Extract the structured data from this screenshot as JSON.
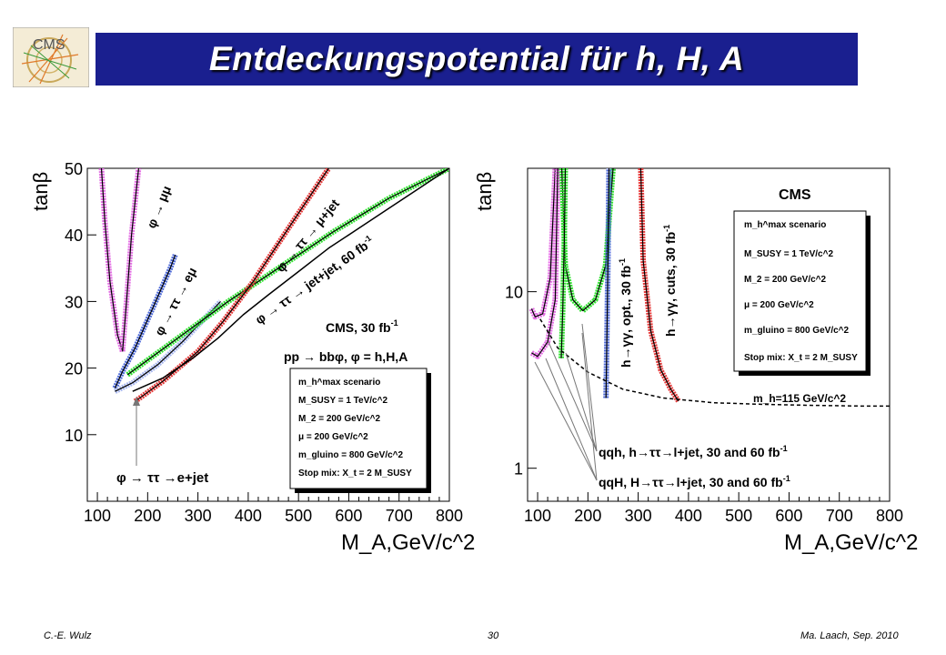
{
  "slide": {
    "title": "Entdeckungspotential für h, H, A",
    "logo_text": "CMS",
    "footer_left": "C.-E. Wulz",
    "footer_center": "30",
    "footer_right": "Ma. Laach, Sep. 2010"
  },
  "colors": {
    "title_bg": "#1a1f8f",
    "magenta": "#e36fe3",
    "blue": "#4f6bd8",
    "lightblue": "#a9b8ef",
    "green": "#33e033",
    "red": "#e33b3b"
  },
  "chart_data": [
    {
      "type": "line",
      "xlabel": "M_A,GeV/c^2",
      "ylabel": "tanβ",
      "xlim": [
        80,
        800
      ],
      "ylim": [
        0,
        50
      ],
      "xticks": [
        100,
        200,
        300,
        400,
        500,
        600,
        700,
        800
      ],
      "yticks": [
        10,
        20,
        30,
        40,
        50
      ],
      "annotations": {
        "cms": "CMS, 30 fb",
        "cms_sup": "-1",
        "process": "pp → bbφ, φ = h,H,A",
        "ch_mumu": "φ → μμ",
        "ch_emu": "φ → ττ → eμ",
        "ch_mujet": "φ → ττ → μ+jet",
        "ch_jetjet": "φ → ττ → jet+jet, 60 fb",
        "ch_jetjet_sup": "-1",
        "ch_ejet": "φ → ττ →e+jet"
      },
      "legend": {
        "l1": "m_h^max scenario",
        "l2": "M_SUSY = 1 TeV/c^2",
        "l3": "M_2 = 200 GeV/c^2",
        "l4": "μ = 200 GeV/c^2",
        "l5": "m_gluino = 800 GeV/c^2",
        "l6": "Stop mix: X_t = 2 M_SUSY"
      },
      "series": [
        {
          "color": "#e36fe3",
          "x": [
            108,
            115,
            125,
            140,
            150
          ],
          "y": [
            50,
            42,
            33,
            25,
            22.5
          ]
        },
        {
          "color": "#e36fe3",
          "x": [
            150,
            158,
            168,
            182
          ],
          "y": [
            22.5,
            30,
            40,
            50
          ]
        },
        {
          "color": "#4f6bd8",
          "x": [
            135,
            150,
            175,
            210,
            245,
            255
          ],
          "y": [
            17,
            19.5,
            23,
            29,
            35,
            37
          ]
        },
        {
          "color": "#a9b8ef",
          "x": [
            135,
            170,
            220,
            270,
            320,
            345
          ],
          "y": [
            16.5,
            17.8,
            20.5,
            24,
            28,
            30
          ]
        },
        {
          "color": "#33e033",
          "x": [
            160,
            260,
            360,
            470,
            570,
            680,
            800
          ],
          "y": [
            19,
            24.5,
            30,
            35.5,
            40.5,
            45.5,
            50
          ]
        },
        {
          "color": "#e33b3b",
          "x": [
            175,
            230,
            300,
            350,
            410,
            480,
            560
          ],
          "y": [
            15,
            18,
            22.5,
            27,
            33,
            41,
            50
          ]
        },
        {
          "color": "#000000",
          "x": [
            170,
            230,
            290,
            340,
            390,
            440,
            500,
            560,
            620,
            680,
            740,
            800
          ],
          "y": [
            16.5,
            18.5,
            21.5,
            24.5,
            28,
            31,
            34.5,
            38,
            41,
            44,
            47,
            50
          ]
        }
      ]
    },
    {
      "type": "line",
      "xlabel": "M_A,GeV/c^2",
      "ylabel": "tanβ",
      "xlim": [
        80,
        800
      ],
      "ylim": [
        0.65,
        50
      ],
      "log_y": true,
      "xticks": [
        100,
        200,
        300,
        400,
        500,
        600,
        700,
        800
      ],
      "yticks": [
        1,
        10
      ],
      "annotations": {
        "cms": "CMS",
        "mh": "m_h=115 GeV/c^2",
        "ch_qqh": "qqh, h→ττ→l+jet, 30 and 60 fb",
        "ch_qqh_sup": "-1",
        "ch_qqH": "qqH, H→ττ→l+jet, 30 and 60 fb",
        "ch_qqH_sup": "-1",
        "ch_hgg_opt": "h→γγ, opt., 30 fb",
        "ch_hgg_opt_sup": "-1",
        "ch_hgg_cuts": "h→γγ, cuts, 30 fb",
        "ch_hgg_cuts_sup": "-1"
      },
      "legend": {
        "l1": "m_h^max scenario",
        "l2": "M_SUSY = 1 TeV/c^2",
        "l3": "M_2 = 200 GeV/c^2",
        "l4": "μ = 200 GeV/c^2",
        "l5": "m_gluino = 800 GeV/c^2",
        "l6": "Stop mix: X_t = 2 M_SUSY"
      },
      "series": [
        {
          "color": "#e36fe3",
          "x": [
            88,
            95,
            110,
            125,
            135
          ],
          "y": [
            8,
            7.2,
            7.5,
            12,
            50
          ]
        },
        {
          "color": "#e36fe3",
          "x": [
            88,
            100,
            120,
            135,
            140
          ],
          "y": [
            4.5,
            4.3,
            5.2,
            9,
            50
          ]
        },
        {
          "color": "#33e033",
          "x": [
            148,
            155,
            170,
            190,
            215,
            235,
            250
          ],
          "y": [
            50,
            14,
            9,
            7.8,
            9,
            14,
            50
          ]
        },
        {
          "color": "#33e033",
          "x": [
            147,
            150,
            153,
            155
          ],
          "y": [
            4.2,
            8,
            20,
            50
          ]
        },
        {
          "color": "#4f6bd8",
          "x": [
            236,
            238,
            240,
            242
          ],
          "y": [
            2.5,
            6,
            15,
            50
          ]
        },
        {
          "color": "#e33b3b",
          "x": [
            305,
            310,
            325,
            345,
            365,
            380
          ],
          "y": [
            50,
            15,
            6,
            3.6,
            2.8,
            2.4
          ]
        },
        {
          "color": "#000000",
          "x": [
            105,
            140,
            200,
            270,
            350,
            450,
            550,
            650,
            750,
            800
          ],
          "y": [
            7,
            4.8,
            3.5,
            2.8,
            2.5,
            2.35,
            2.3,
            2.27,
            2.25,
            2.25
          ]
        }
      ]
    }
  ]
}
